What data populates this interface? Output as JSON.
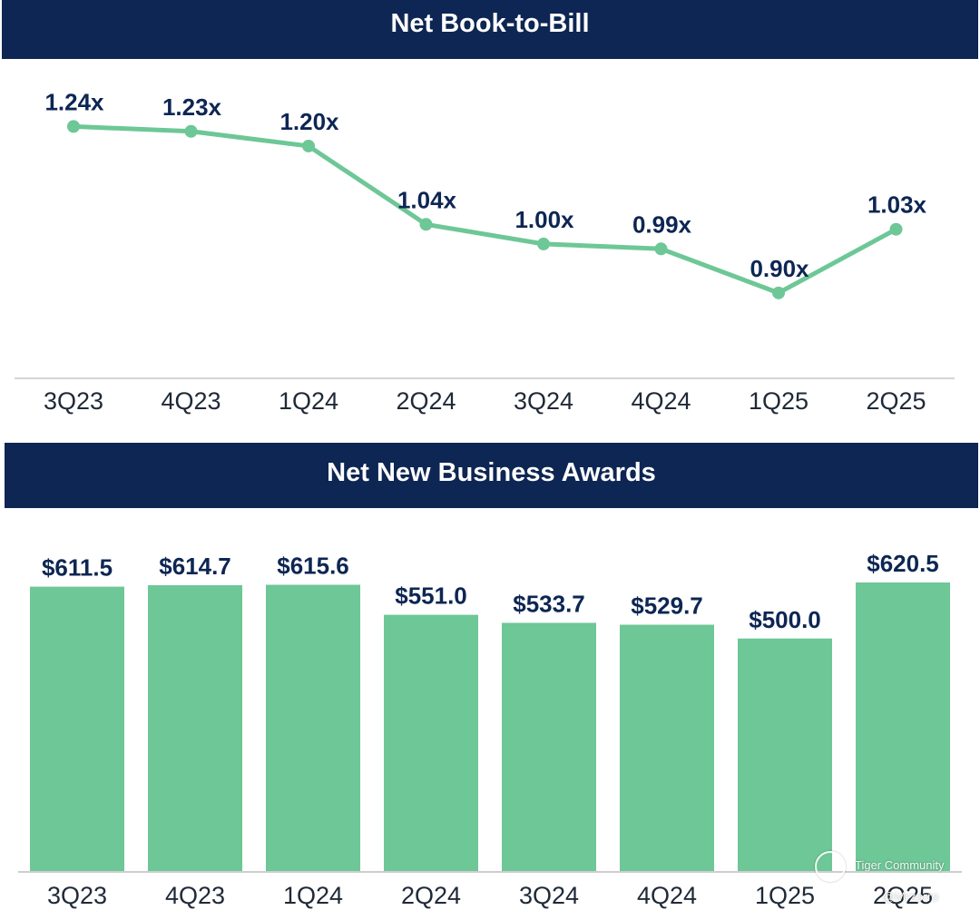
{
  "chart_data": [
    {
      "type": "line",
      "title": "Net Book-to-Bill",
      "categories": [
        "3Q23",
        "4Q23",
        "1Q24",
        "2Q24",
        "3Q24",
        "4Q24",
        "1Q25",
        "2Q25"
      ],
      "values": [
        1.24,
        1.23,
        1.2,
        1.04,
        1.0,
        0.99,
        0.9,
        1.03
      ],
      "data_labels": [
        "1.24x",
        "1.23x",
        "1.20x",
        "1.04x",
        "1.00x",
        "0.99x",
        "0.90x",
        "1.03x"
      ],
      "xlabel": "",
      "ylabel": "",
      "ylim": [
        0.72,
        1.35
      ],
      "grid": false,
      "color": "#6dc796"
    },
    {
      "type": "bar",
      "title": "Net New Business Awards",
      "categories": [
        "3Q23",
        "4Q23",
        "1Q24",
        "2Q24",
        "3Q24",
        "4Q24",
        "1Q25",
        "2Q25"
      ],
      "values": [
        611.5,
        614.7,
        615.6,
        551.0,
        533.7,
        529.7,
        500.0,
        620.5
      ],
      "data_labels": [
        "$611.5",
        "$614.7",
        "$615.6",
        "$551.0",
        "$533.7",
        "$529.7",
        "$500.0",
        "$620.5"
      ],
      "xlabel": "",
      "ylabel": "",
      "ylim": [
        0,
        620.5
      ],
      "grid": false,
      "color": "#6dc796"
    }
  ],
  "header_color": "#0d2653",
  "watermark": {
    "brand": "Tiger Community",
    "handle": "@Mrzorro"
  }
}
